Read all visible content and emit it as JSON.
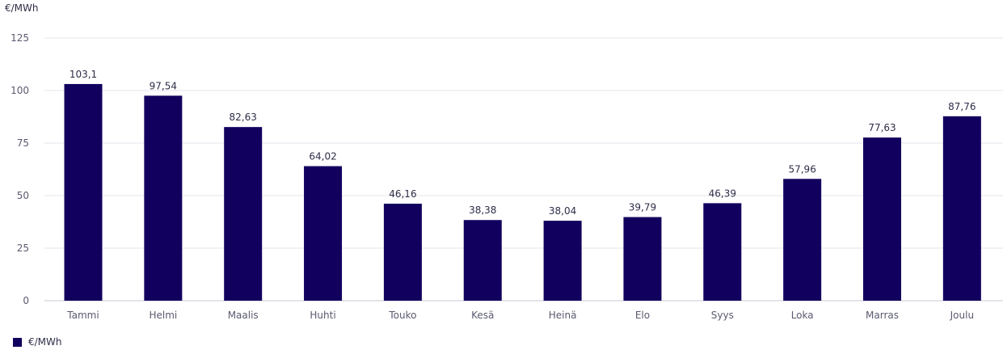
{
  "chart_data": {
    "type": "bar",
    "unit_label": "€/MWh",
    "categories": [
      "Tammi",
      "Helmi",
      "Maalis",
      "Huhti",
      "Touko",
      "Kesä",
      "Heinä",
      "Elo",
      "Syys",
      "Loka",
      "Marras",
      "Joulu"
    ],
    "values": [
      103.1,
      97.54,
      82.63,
      64.02,
      46.16,
      38.38,
      38.04,
      39.79,
      46.39,
      57.96,
      77.63,
      87.76
    ],
    "data_labels": [
      "103,1",
      "97,54",
      "82,63",
      "64,02",
      "46,16",
      "38,38",
      "38,04",
      "39,79",
      "46,39",
      "57,96",
      "77,63",
      "87,76"
    ],
    "yticks": [
      0,
      25,
      50,
      75,
      100,
      125
    ],
    "ylim": [
      0,
      125
    ],
    "grid": true,
    "legend": {
      "label": "€/MWh",
      "position": "bottom-left"
    },
    "colors": {
      "bar": "#12005e",
      "grid": "#e6e6ee",
      "axis": "#c9c9d6"
    }
  }
}
